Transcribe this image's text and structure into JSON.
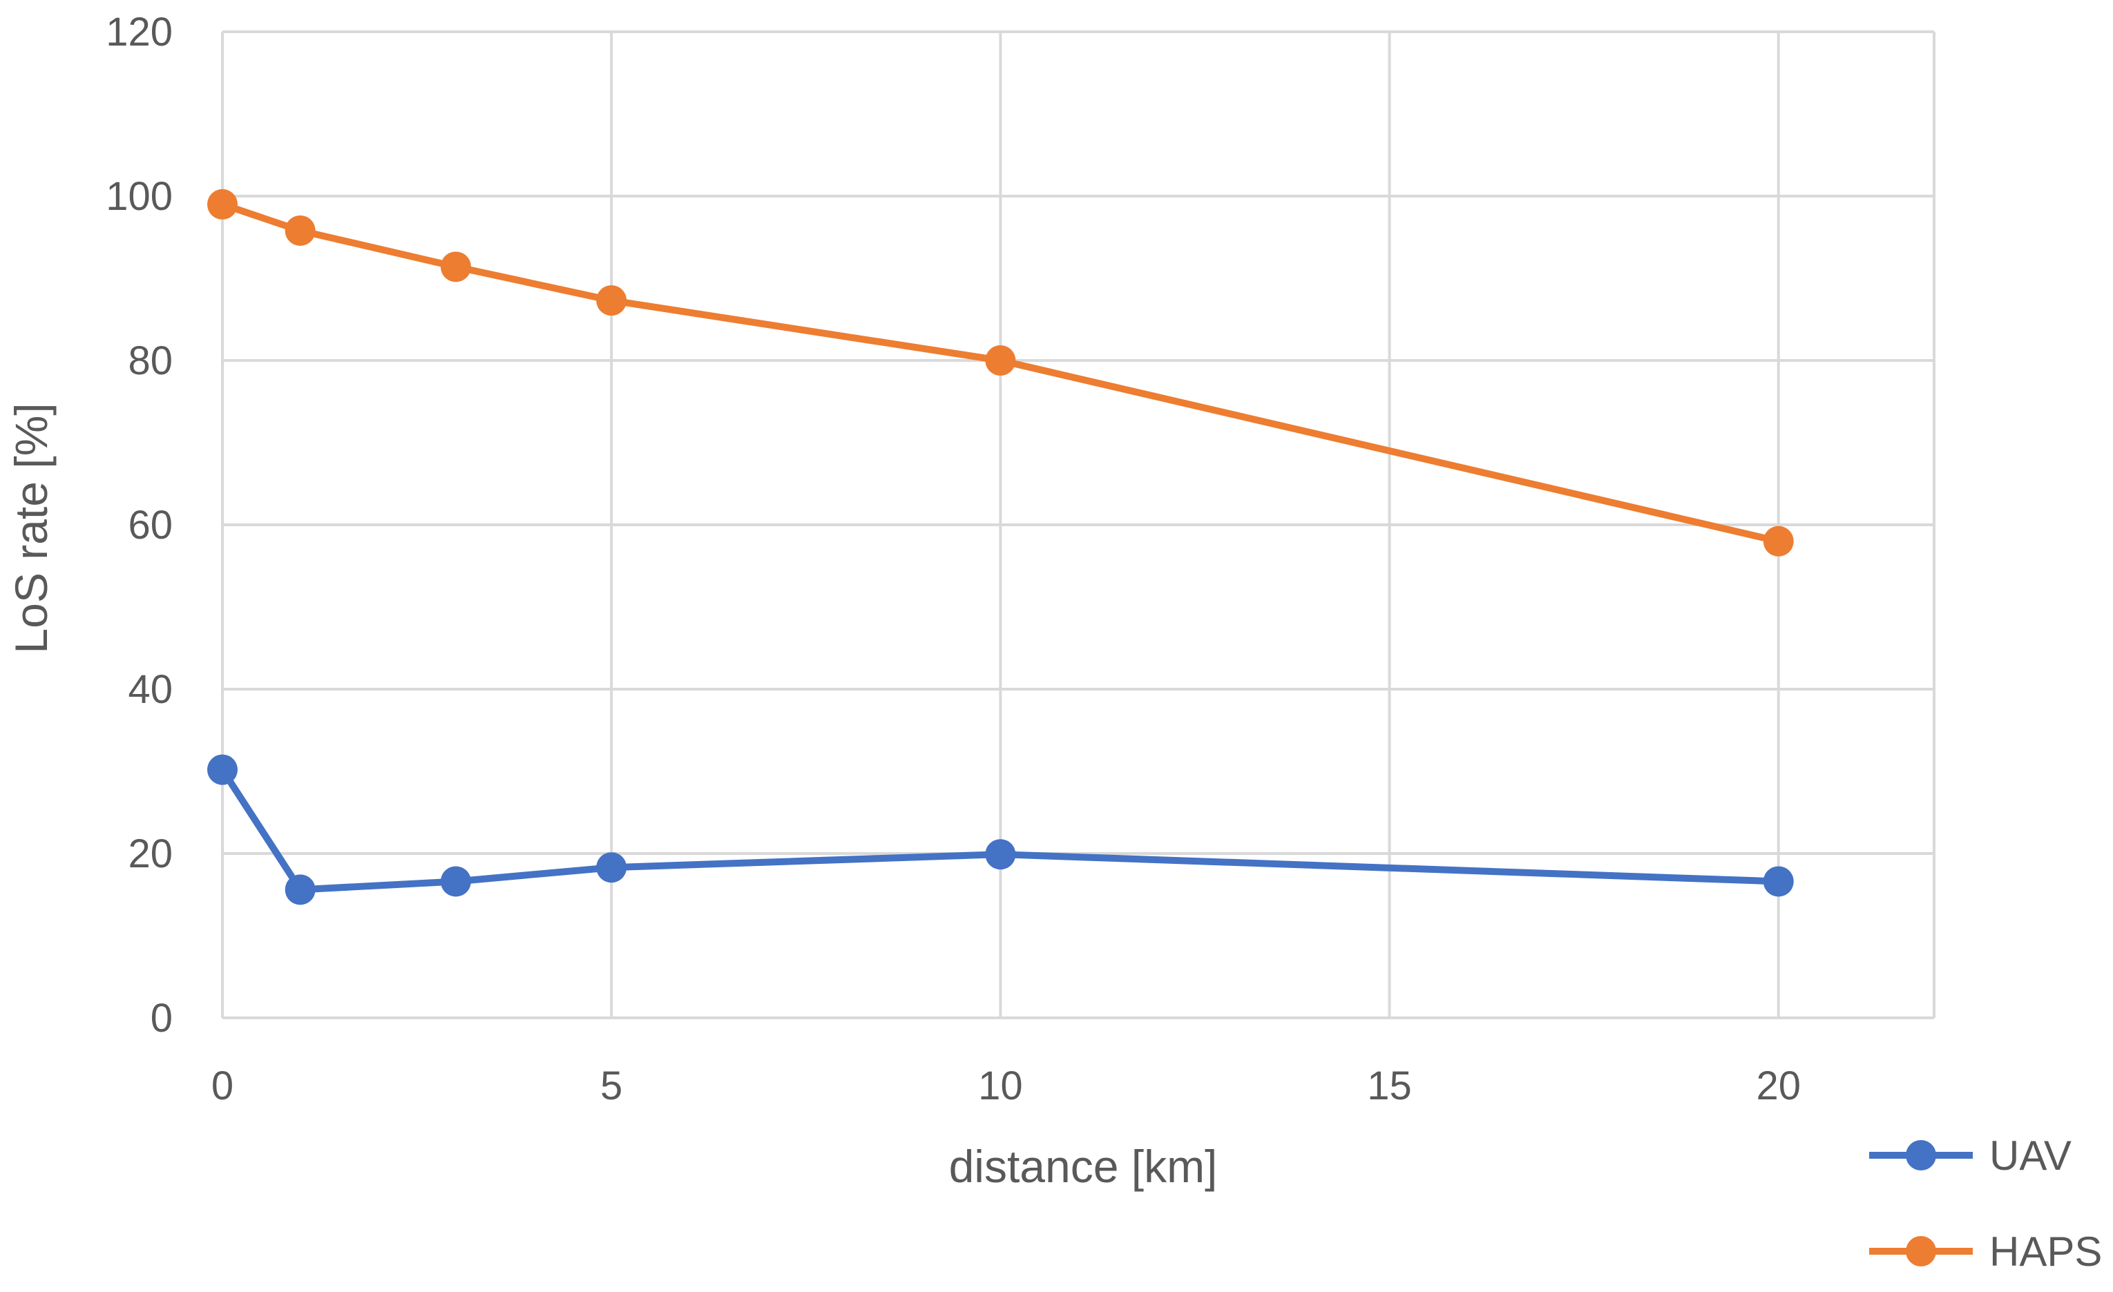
{
  "chart_data": {
    "type": "line",
    "xlabel": "distance [km]",
    "ylabel": "LoS rate [%]",
    "xlim": [
      0,
      22
    ],
    "ylim": [
      0,
      120
    ],
    "xticks": [
      0,
      5,
      10,
      15,
      20
    ],
    "yticks": [
      0,
      20,
      40,
      60,
      80,
      100,
      120
    ],
    "grid": true,
    "legend_position": "bottom-right",
    "series": [
      {
        "name": "UAV",
        "color": "#4472C4",
        "x": [
          0,
          1,
          3,
          5,
          10,
          20
        ],
        "values": [
          30.2,
          15.6,
          16.6,
          18.3,
          19.9,
          16.6
        ]
      },
      {
        "name": "HAPS",
        "color": "#ED7D31",
        "x": [
          0,
          1,
          3,
          5,
          10,
          20
        ],
        "values": [
          99.0,
          95.8,
          91.4,
          87.3,
          80.0,
          58.0
        ]
      }
    ]
  }
}
